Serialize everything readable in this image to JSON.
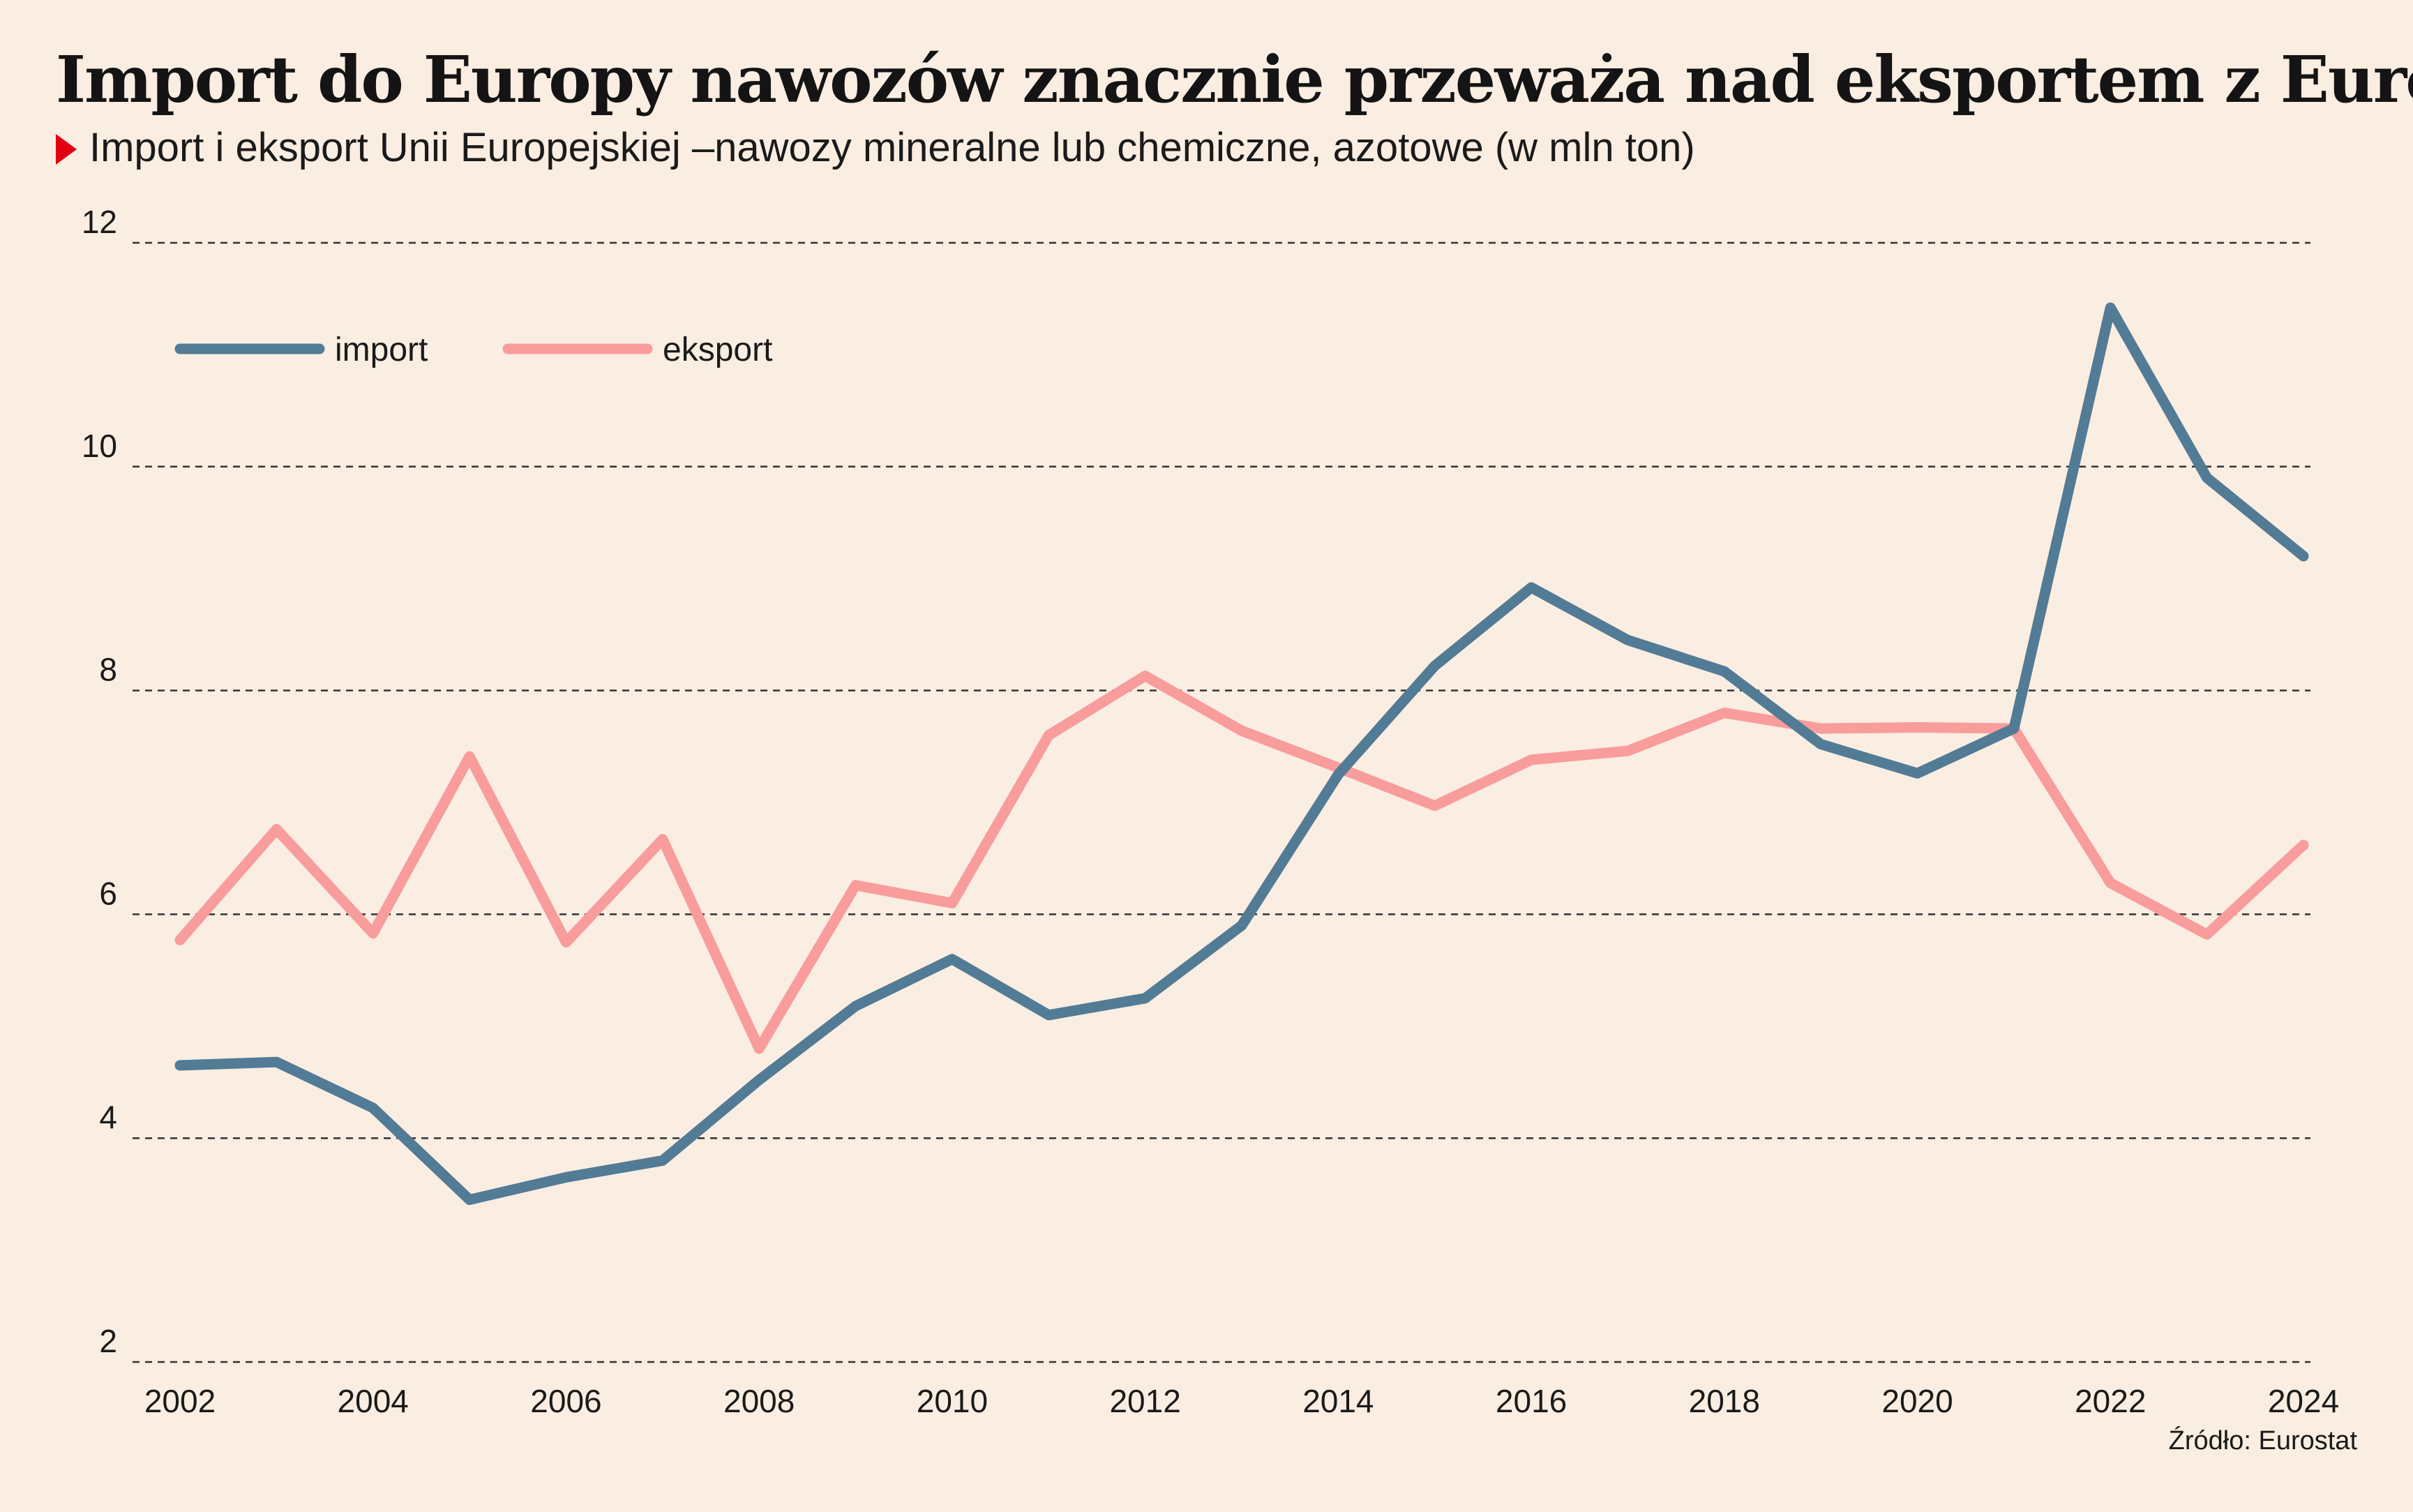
{
  "title": "Import do Europy nawozów znacznie przeważa nad eksportem z Europy",
  "subtitle": "Import i eksport Unii Europejskiej –nawozy mineralne lub chemiczne, azotowe (w mln ton)",
  "source": "Źródło: Eurostat",
  "colors": {
    "background": "#faede1",
    "import": "#527b96",
    "eksport": "#f89c9c",
    "grid": "#333333",
    "marker": "#e3000f"
  },
  "chart_data": {
    "type": "line",
    "x": [
      2002,
      2003,
      2004,
      2005,
      2006,
      2007,
      2008,
      2009,
      2010,
      2011,
      2012,
      2013,
      2014,
      2015,
      2016,
      2017,
      2018,
      2019,
      2020,
      2021,
      2022,
      2023,
      2024
    ],
    "x_tick_labels": [
      "2002",
      "2004",
      "2006",
      "2008",
      "2010",
      "2012",
      "2014",
      "2016",
      "2018",
      "2020",
      "2022",
      "2024"
    ],
    "y_ticks": [
      2,
      4,
      6,
      8,
      10,
      12
    ],
    "y_tick_labels": [
      "2",
      "4",
      "6",
      "8",
      "10",
      "12"
    ],
    "ylim": [
      2,
      12
    ],
    "xlim": [
      2002,
      2024
    ],
    "grid": "horizontal dashed",
    "legend_position": "top-left",
    "series": [
      {
        "name": "import",
        "color": "#527b96",
        "values": [
          4.65,
          4.68,
          4.27,
          3.45,
          3.65,
          3.8,
          4.52,
          5.18,
          5.6,
          5.1,
          5.25,
          5.9,
          7.25,
          8.22,
          8.92,
          8.45,
          8.17,
          7.52,
          7.26,
          7.66,
          11.42,
          9.9,
          9.2
        ]
      },
      {
        "name": "eksport",
        "color": "#f89c9c",
        "values": [
          5.77,
          6.76,
          5.83,
          7.41,
          5.75,
          6.67,
          4.8,
          6.26,
          6.1,
          7.6,
          8.13,
          7.64,
          7.31,
          6.97,
          7.38,
          7.46,
          7.8,
          7.66,
          7.67,
          7.66,
          6.28,
          5.82,
          6.62
        ]
      }
    ]
  }
}
